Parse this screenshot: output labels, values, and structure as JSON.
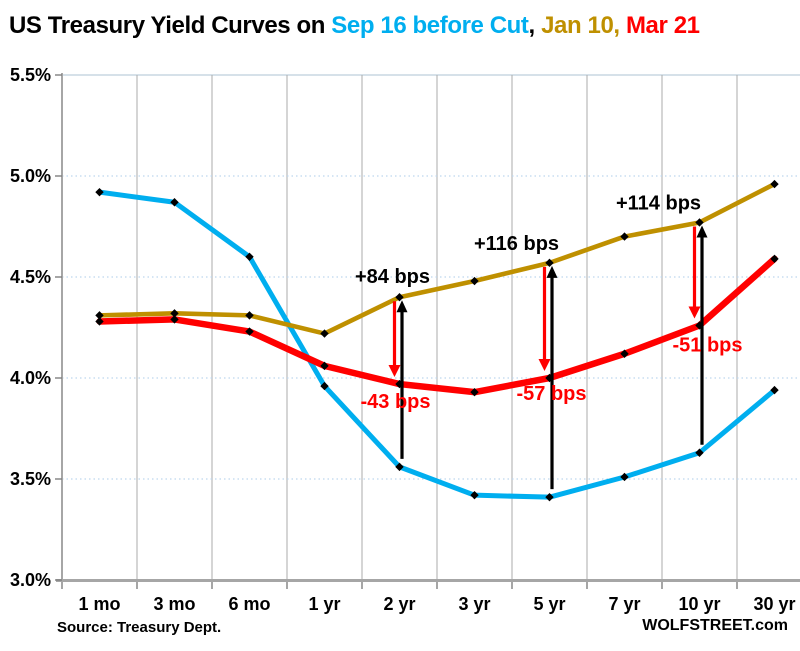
{
  "title": {
    "prefix": "US Treasury Yield Curves on ",
    "series1": "Sep 16 before Cut",
    "sep1": ", ",
    "series2": "Jan 10,",
    "sep2": " ",
    "series3": "Mar 21"
  },
  "footer": {
    "source": "Source: Treasury Dept.",
    "brand": "WOLFSTREET.com"
  },
  "colors": {
    "grid_vertical": "#ABABAB",
    "grid_horizontal_dotted": "#BDD7EE",
    "top_border": "#C9D7E2",
    "axis": "#A6A6A6",
    "tick": "#808080",
    "text": "#000000",
    "marker": "#000000",
    "annotation_up": "#000000",
    "annotation_down": "#FF0000"
  },
  "chart_data": {
    "type": "line",
    "title": "US Treasury Yield Curves on Sep 16 before Cut, Jan 10, Mar 21",
    "categories": [
      "1 mo",
      "3 mo",
      "6 mo",
      "1 yr",
      "2 yr",
      "3 yr",
      "5 yr",
      "7 yr",
      "10 yr",
      "30 yr"
    ],
    "unit": "percent",
    "ylim": [
      3.0,
      5.5
    ],
    "ytick_values": [
      5.5,
      5.0,
      4.5,
      4.0,
      3.5,
      3.0
    ],
    "ytick_labels": [
      "5.5%",
      "5.0%",
      "4.5%",
      "4.0%",
      "3.5%",
      "3.0%"
    ],
    "grid": {
      "vertical": "solid",
      "horizontal": "dotted",
      "legend_position": "in-title"
    },
    "series": [
      {
        "name": "Sep 16 before Cut",
        "color": "#00AEEF",
        "values": [
          4.92,
          4.87,
          4.6,
          3.96,
          3.56,
          3.42,
          3.41,
          3.51,
          3.63,
          3.94
        ]
      },
      {
        "name": "Jan 10",
        "color": "#BF9000",
        "values": [
          4.31,
          4.32,
          4.31,
          4.22,
          4.4,
          4.48,
          4.57,
          4.7,
          4.77,
          4.96
        ]
      },
      {
        "name": "Mar 21",
        "color": "#FF0000",
        "values": [
          4.28,
          4.29,
          4.23,
          4.06,
          3.97,
          3.93,
          4.0,
          4.12,
          4.26,
          4.59
        ]
      }
    ],
    "annotations": [
      {
        "category": "2 yr",
        "index": 4,
        "up_label": "+84 bps",
        "down_label": "-43 bps",
        "up_offset": [
          -7,
          -14
        ],
        "down_offset": [
          -4,
          24
        ]
      },
      {
        "category": "5 yr",
        "index": 6,
        "up_label": "+116 bps",
        "down_label": "-57 bps",
        "up_offset": [
          -33,
          -13
        ],
        "down_offset": [
          2,
          22
        ]
      },
      {
        "category": "10 yr",
        "index": 8,
        "up_label": "+114 bps",
        "down_label": "-51 bps",
        "up_offset": [
          -41,
          -13
        ],
        "down_offset": [
          8,
          26
        ]
      }
    ]
  }
}
